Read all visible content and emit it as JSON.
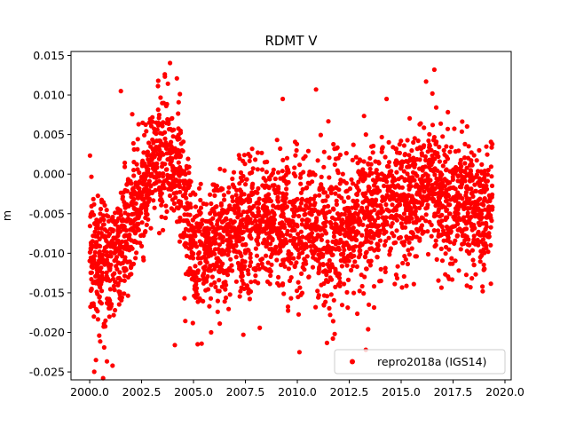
{
  "chart_data": {
    "type": "scatter",
    "title": "RDMT V",
    "xlabel": "",
    "ylabel": "m",
    "xlim": [
      1999.1,
      2020.3
    ],
    "ylim": [
      -0.026,
      0.0155
    ],
    "xticks": [
      "2000.0",
      "2002.5",
      "2005.0",
      "2007.5",
      "2010.0",
      "2012.5",
      "2015.0",
      "2017.5",
      "2020.0"
    ],
    "yticks": [
      "0.015",
      "0.010",
      "0.005",
      "0.000",
      "-0.005",
      "-0.010",
      "-0.015",
      "-0.020",
      "-0.025"
    ],
    "grid": false,
    "legend_position": "lower right",
    "series": [
      {
        "name": "repro2018a (IGS14)",
        "color": "#ff0000",
        "marker": "circle",
        "trend": [
          [
            2000.0,
            -0.009
          ],
          [
            2000.5,
            -0.011
          ],
          [
            2001.0,
            -0.012
          ],
          [
            2001.5,
            -0.009
          ],
          [
            2002.0,
            -0.006
          ],
          [
            2002.5,
            -0.003
          ],
          [
            2003.0,
            0.001
          ],
          [
            2003.5,
            0.003
          ],
          [
            2004.0,
            0.002
          ],
          [
            2004.5,
            -0.003
          ],
          [
            2005.0,
            -0.01
          ],
          [
            2005.5,
            -0.011
          ],
          [
            2006.0,
            -0.009
          ],
          [
            2006.5,
            -0.008
          ],
          [
            2007.0,
            -0.007
          ],
          [
            2007.5,
            -0.007
          ],
          [
            2008.0,
            -0.007
          ],
          [
            2008.5,
            -0.006
          ],
          [
            2009.0,
            -0.006
          ],
          [
            2009.5,
            -0.006
          ],
          [
            2010.0,
            -0.007
          ],
          [
            2010.5,
            -0.006
          ],
          [
            2011.0,
            -0.008
          ],
          [
            2011.5,
            -0.009
          ],
          [
            2012.0,
            -0.007
          ],
          [
            2012.5,
            -0.006
          ],
          [
            2013.0,
            -0.005
          ],
          [
            2013.5,
            -0.005
          ],
          [
            2014.0,
            -0.004
          ],
          [
            2014.5,
            -0.004
          ],
          [
            2015.0,
            -0.004
          ],
          [
            2015.5,
            -0.003
          ],
          [
            2016.0,
            -0.002
          ],
          [
            2016.5,
            -0.001
          ],
          [
            2017.0,
            -0.003
          ],
          [
            2017.5,
            -0.004
          ],
          [
            2018.0,
            -0.004
          ],
          [
            2018.5,
            -0.004
          ],
          [
            2019.0,
            -0.005
          ],
          [
            2019.4,
            -0.005
          ]
        ],
        "outliers": [
          [
            2001.5,
            0.0105
          ],
          [
            2003.3,
            0.0118
          ],
          [
            2004.2,
            0.0121
          ],
          [
            2009.3,
            0.0095
          ],
          [
            2010.9,
            0.0107
          ],
          [
            2016.6,
            0.0132
          ],
          [
            2016.2,
            0.0117
          ],
          [
            2014.3,
            0.0095
          ],
          [
            2000.3,
            -0.0235
          ],
          [
            2001.1,
            -0.0242
          ],
          [
            2004.1,
            -0.0216
          ],
          [
            2005.2,
            -0.0215
          ],
          [
            2010.1,
            -0.0225
          ],
          [
            2013.3,
            -0.0222
          ],
          [
            2011.8,
            -0.0202
          ],
          [
            2007.4,
            -0.0203
          ]
        ]
      }
    ]
  }
}
